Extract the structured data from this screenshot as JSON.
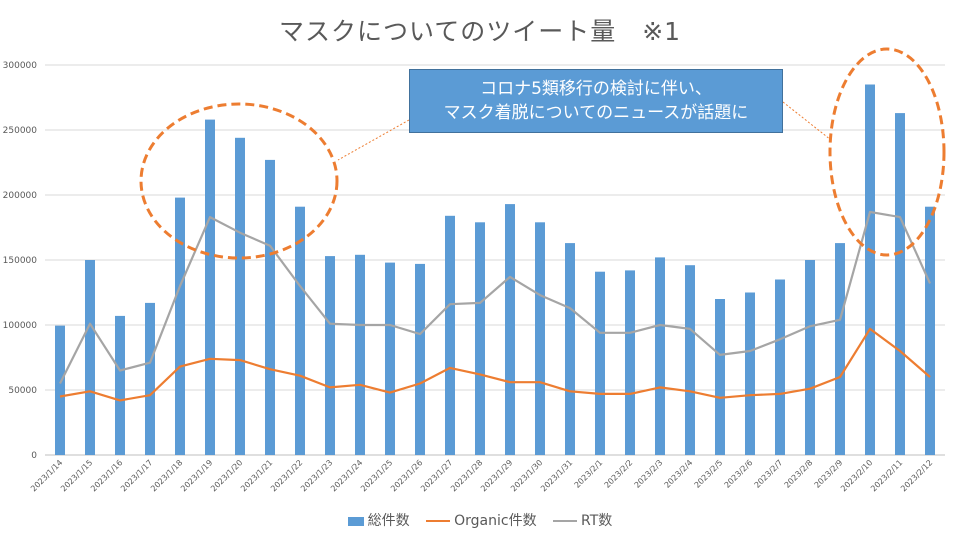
{
  "chart_data": {
    "type": "bar+line",
    "title": "マスクについてのツイート量　※1",
    "categories": [
      "2023/1/14",
      "2023/1/15",
      "2023/1/16",
      "2023/1/17",
      "2023/1/18",
      "2023/1/19",
      "2023/1/20",
      "2023/1/21",
      "2023/1/22",
      "2023/1/23",
      "2023/1/24",
      "2023/1/25",
      "2023/1/26",
      "2023/1/27",
      "2023/1/28",
      "2023/1/29",
      "2023/1/30",
      "2023/1/31",
      "2023/2/1",
      "2023/2/2",
      "2023/2/3",
      "2023/2/4",
      "2023/2/5",
      "2023/2/6",
      "2023/2/7",
      "2023/2/8",
      "2023/2/9",
      "2023/2/10",
      "2023/2/11",
      "2023/2/12"
    ],
    "series": [
      {
        "name": "総件数",
        "type": "bar",
        "color": "#5b9bd5",
        "values": [
          99500,
          150000,
          107000,
          117000,
          198000,
          258000,
          244000,
          227000,
          191000,
          153000,
          154000,
          148000,
          147000,
          184000,
          179000,
          193000,
          179000,
          163000,
          141000,
          142000,
          152000,
          146000,
          120000,
          125000,
          135000,
          150000,
          163000,
          285000,
          263000,
          191000
        ]
      },
      {
        "name": "Organic件数",
        "type": "line",
        "color": "#ed7d31",
        "values": [
          45000,
          49000,
          42000,
          46000,
          68000,
          74000,
          73000,
          66000,
          61000,
          52000,
          54000,
          48000,
          55000,
          67000,
          62000,
          56000,
          56000,
          49000,
          47000,
          47000,
          52000,
          49000,
          44000,
          46000,
          47000,
          51000,
          60000,
          97000,
          80000,
          60000
        ]
      },
      {
        "name": "RT数",
        "type": "line",
        "color": "#a5a5a5",
        "values": [
          55000,
          101000,
          65000,
          71000,
          130000,
          183000,
          171000,
          161000,
          130000,
          101000,
          100000,
          100000,
          93000,
          116000,
          117000,
          137000,
          123000,
          113000,
          94000,
          94000,
          100000,
          97000,
          77000,
          80000,
          89000,
          99000,
          104000,
          187000,
          183000,
          132000
        ]
      }
    ],
    "ylim": [
      0,
      300000
    ],
    "yticks": [
      0,
      50000,
      100000,
      150000,
      200000,
      250000,
      300000
    ],
    "ytick_labels": [
      "0",
      "50000",
      "100000",
      "150000",
      "200000",
      "250000",
      "300000"
    ],
    "grid": true,
    "legend_position": "bottom-center",
    "annotation": {
      "lines": [
        "コロナ5類移行の検討に伴い、",
        "マスク着脱についてのニュースが話題に"
      ],
      "highlight_color": "#ed7d31",
      "highlights": [
        "2023/1/19–2023/1/22",
        "2023/2/10–2023/2/12"
      ]
    }
  }
}
